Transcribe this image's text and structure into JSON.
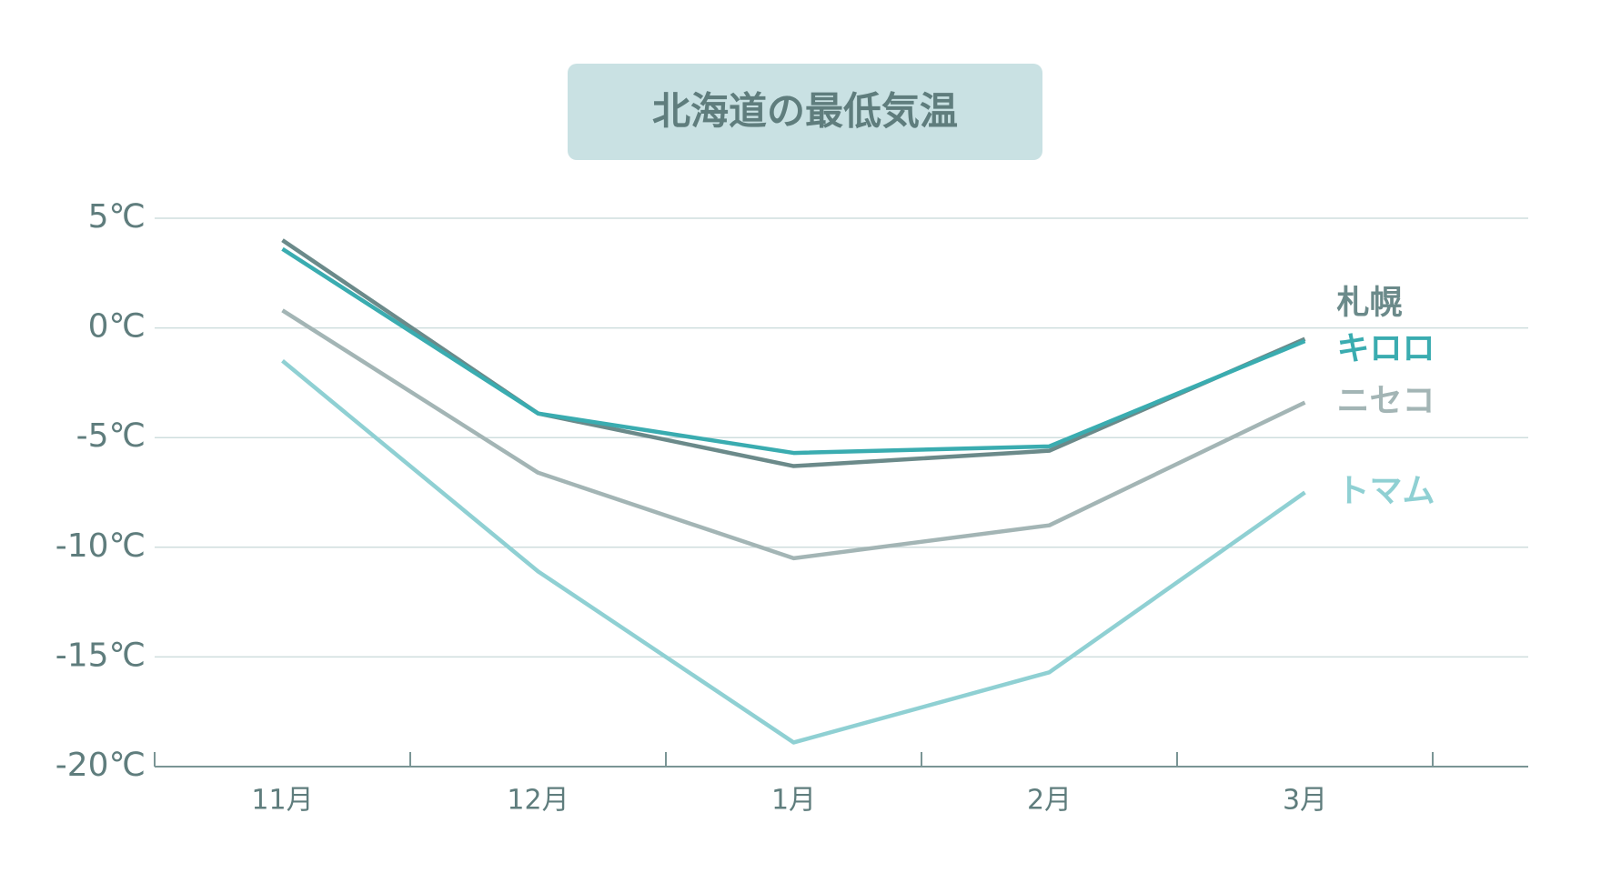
{
  "chart_data": {
    "type": "line",
    "title": "北海道の最低気温",
    "categories": [
      "11月",
      "12月",
      "1月",
      "2月",
      "3月"
    ],
    "series": [
      {
        "name": "札幌",
        "color": "#6b8a8a",
        "values": [
          4.0,
          -3.9,
          -6.3,
          -5.6,
          -0.5
        ]
      },
      {
        "name": "キロロ",
        "color": "#3aacb0",
        "values": [
          3.6,
          -3.9,
          -5.7,
          -5.4,
          -0.6
        ]
      },
      {
        "name": "ニセコ",
        "color": "#a3b5b5",
        "values": [
          0.8,
          -6.6,
          -10.5,
          -9.0,
          -3.4
        ]
      },
      {
        "name": "トマム",
        "color": "#8fd0d3",
        "values": [
          -1.5,
          -11.1,
          -18.9,
          -15.7,
          -7.5
        ]
      }
    ],
    "ylim": [
      -20,
      5
    ],
    "yticks": [
      {
        "value": 5,
        "label": "5℃"
      },
      {
        "value": 0,
        "label": "0℃"
      },
      {
        "value": -5,
        "label": "-5℃"
      },
      {
        "value": -10,
        "label": "-10℃"
      },
      {
        "value": -15,
        "label": "-15℃"
      },
      {
        "value": -20,
        "label": "-20℃"
      }
    ],
    "grid": true
  }
}
